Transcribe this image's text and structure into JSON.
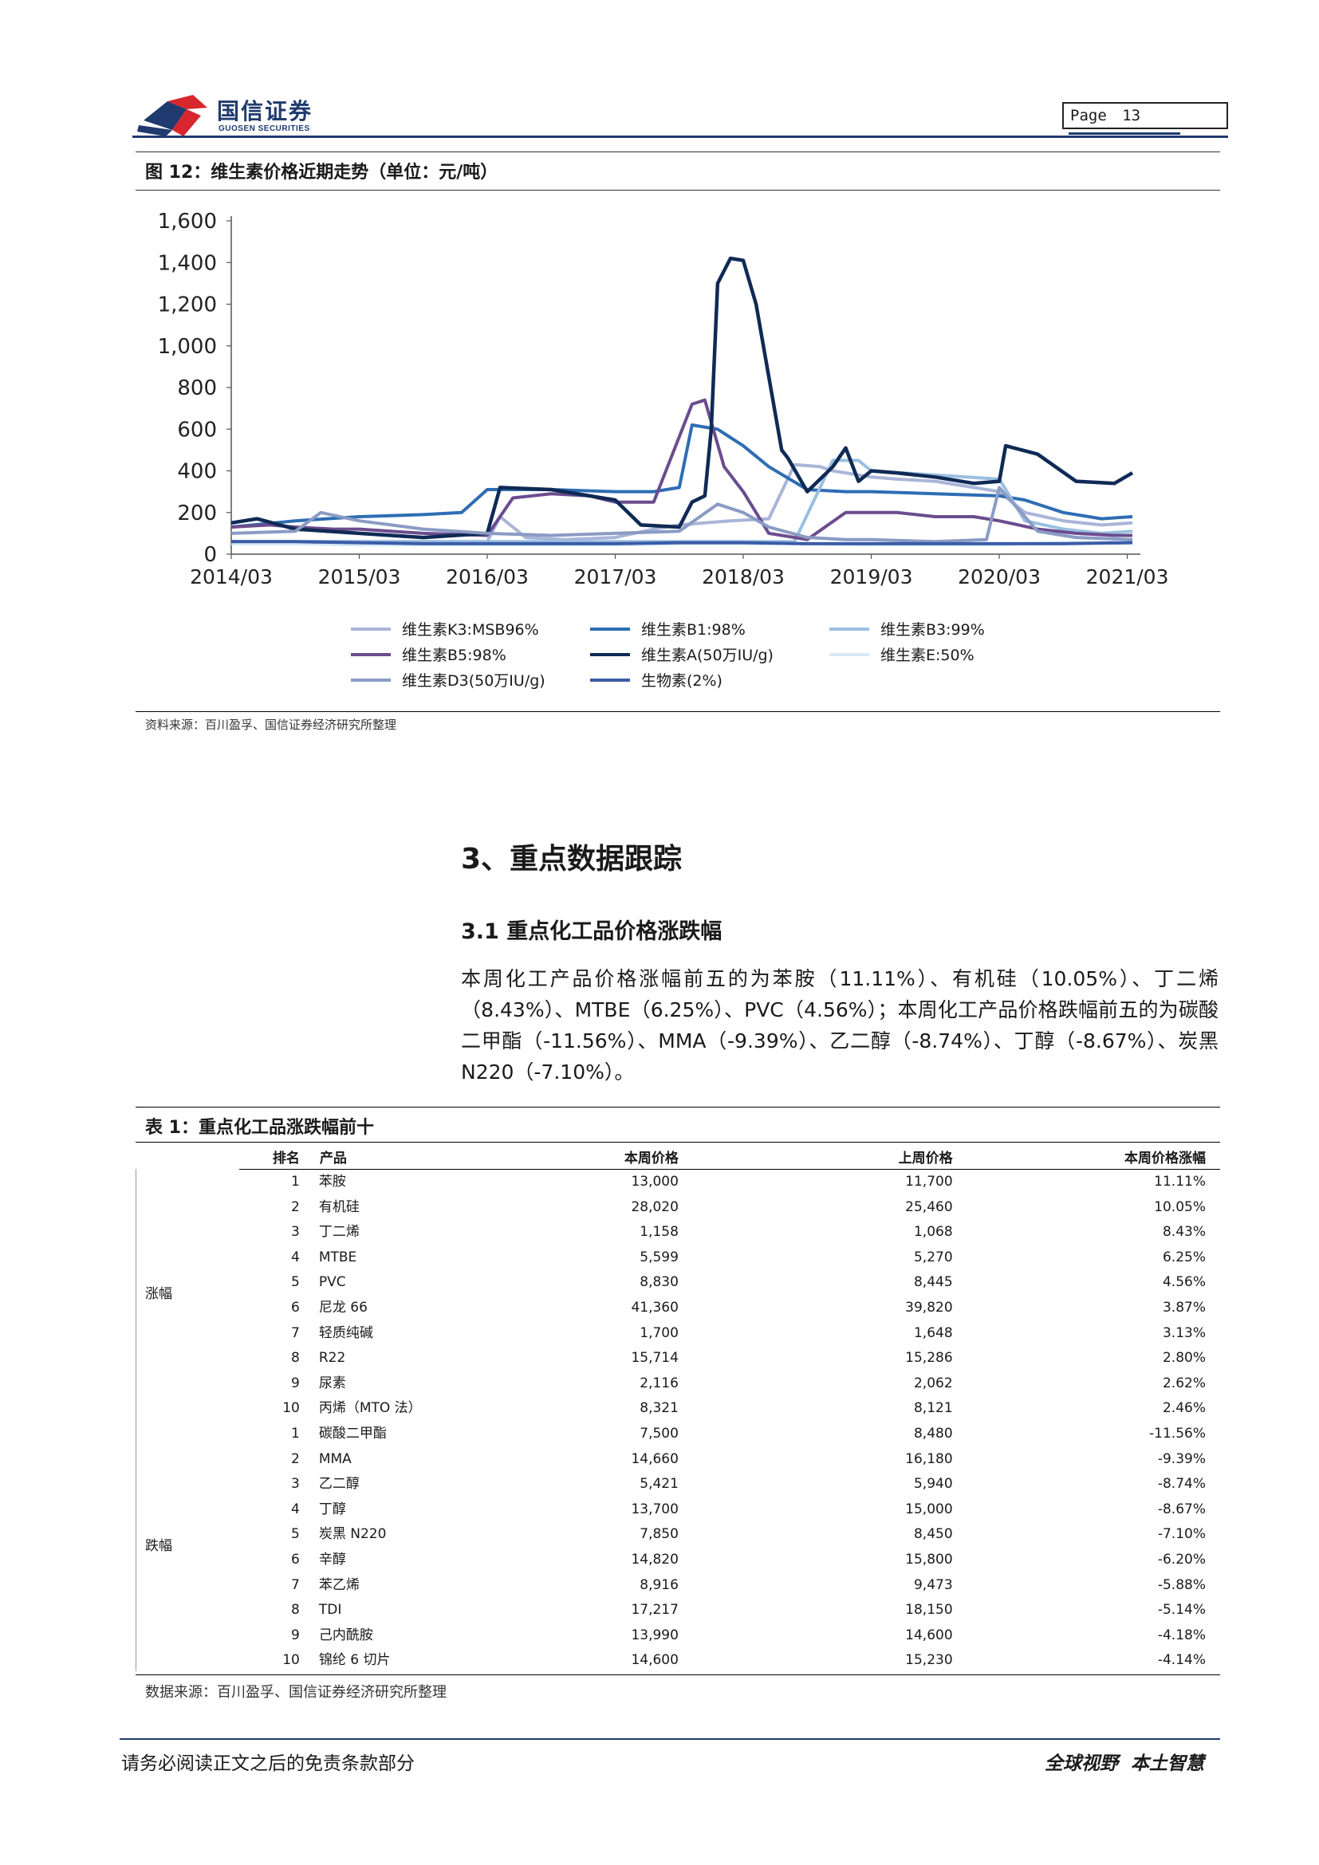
{
  "header": {
    "logo_cn": "国信证券",
    "logo_en": "GUOSEN SECURITIES",
    "page_label": "Page",
    "page_number": "13",
    "brand_color": "#1f3a6e"
  },
  "figure": {
    "title": "图 12：维生素价格近期走势（单位：元/吨）",
    "source": "资料来源：百川盈孚、国信证券经济研究所整理"
  },
  "chart_data": {
    "type": "line",
    "ylim": [
      0,
      1600
    ],
    "yticks": [
      "1,600",
      "1,400",
      "1,200",
      "1,000",
      "800",
      "600",
      "400",
      "200",
      "0"
    ],
    "ytick_values": [
      1600,
      1400,
      1200,
      1000,
      800,
      600,
      400,
      200,
      0
    ],
    "xticks": [
      "2014/03",
      "2015/03",
      "2016/03",
      "2017/03",
      "2018/03",
      "2019/03",
      "2020/03",
      "2021/03"
    ],
    "xlim": [
      2014.0,
      2021.04
    ],
    "legend_position": "bottom",
    "series": [
      {
        "name": "维生素K3:MSB96%",
        "color": "#a9b5d8",
        "x": [
          2014.0,
          2014.4,
          2014.7,
          2015.0,
          2015.5,
          2016.0,
          2016.1,
          2016.3,
          2016.6,
          2017.0,
          2017.3,
          2017.5,
          2017.7,
          2017.9,
          2018.2,
          2018.4,
          2018.6,
          2018.7,
          2018.8,
          2019.0,
          2019.2,
          2019.5,
          2019.8,
          2020.0,
          2020.2,
          2020.5,
          2020.8,
          2021.04
        ],
        "values": [
          60,
          60,
          60,
          60,
          60,
          60,
          180,
          80,
          70,
          80,
          120,
          140,
          150,
          160,
          170,
          430,
          420,
          400,
          390,
          370,
          360,
          350,
          320,
          300,
          200,
          160,
          140,
          150
        ]
      },
      {
        "name": "维生素B1:98%",
        "color": "#2e6db4",
        "x": [
          2014.0,
          2014.5,
          2015.0,
          2015.5,
          2015.8,
          2016.0,
          2016.5,
          2017.0,
          2017.3,
          2017.5,
          2017.6,
          2017.8,
          2018.0,
          2018.2,
          2018.5,
          2018.8,
          2019.0,
          2019.5,
          2020.0,
          2020.2,
          2020.5,
          2020.8,
          2021.04
        ],
        "values": [
          130,
          160,
          180,
          190,
          200,
          310,
          310,
          300,
          300,
          320,
          620,
          600,
          520,
          420,
          310,
          300,
          300,
          290,
          280,
          260,
          200,
          170,
          180
        ]
      },
      {
        "name": "维生素B3:99%",
        "color": "#9bbfe0",
        "x": [
          2014.0,
          2014.5,
          2015.0,
          2015.5,
          2016.0,
          2016.5,
          2017.0,
          2017.5,
          2017.9,
          2018.0,
          2018.2,
          2018.4,
          2018.7,
          2018.9,
          2019.0,
          2019.5,
          2020.0,
          2020.2,
          2020.5,
          2020.8,
          2021.04
        ],
        "values": [
          60,
          60,
          60,
          60,
          60,
          60,
          60,
          60,
          60,
          60,
          60,
          60,
          450,
          450,
          400,
          380,
          360,
          160,
          120,
          100,
          110
        ]
      },
      {
        "name": "维生素B5:98%",
        "color": "#6b4c8e",
        "x": [
          2014.0,
          2014.3,
          2014.5,
          2014.8,
          2015.0,
          2015.5,
          2016.0,
          2016.2,
          2016.5,
          2016.8,
          2017.0,
          2017.3,
          2017.6,
          2017.7,
          2017.85,
          2018.0,
          2018.2,
          2018.5,
          2018.8,
          2019.0,
          2019.2,
          2019.5,
          2019.8,
          2020.0,
          2020.3,
          2020.6,
          2020.9,
          2021.04
        ],
        "values": [
          130,
          140,
          130,
          120,
          120,
          100,
          90,
          270,
          290,
          280,
          250,
          250,
          720,
          740,
          420,
          300,
          100,
          70,
          200,
          200,
          200,
          180,
          180,
          160,
          120,
          100,
          90,
          90
        ]
      },
      {
        "name": "维生素A(50万IU/g)",
        "color": "#0f2a55",
        "x": [
          2014.0,
          2014.2,
          2014.5,
          2015.0,
          2015.5,
          2016.0,
          2016.1,
          2016.5,
          2016.8,
          2017.0,
          2017.2,
          2017.5,
          2017.6,
          2017.7,
          2017.75,
          2017.8,
          2017.9,
          2018.0,
          2018.1,
          2018.3,
          2018.35,
          2018.5,
          2018.7,
          2018.8,
          2018.9,
          2019.0,
          2019.2,
          2019.5,
          2019.8,
          2020.0,
          2020.05,
          2020.3,
          2020.6,
          2020.9,
          2021.04
        ],
        "values": [
          150,
          170,
          120,
          100,
          80,
          100,
          320,
          310,
          280,
          260,
          140,
          130,
          250,
          280,
          600,
          1300,
          1420,
          1410,
          1200,
          500,
          460,
          300,
          420,
          510,
          350,
          400,
          390,
          370,
          340,
          350,
          520,
          480,
          350,
          340,
          390
        ]
      },
      {
        "name": "维生素E:50%",
        "color": "#d6e9f5",
        "x": [
          2014.0,
          2014.5,
          2015.0,
          2015.5,
          2016.0,
          2016.5,
          2017.0,
          2017.5,
          2017.9,
          2018.0,
          2018.5,
          2019.0,
          2019.5,
          2020.0,
          2020.2,
          2020.5,
          2020.8,
          2021.04
        ],
        "values": [
          50,
          50,
          45,
          45,
          45,
          45,
          45,
          50,
          50,
          50,
          50,
          45,
          45,
          45,
          50,
          55,
          55,
          60
        ]
      },
      {
        "name": "维生素D3(50万IU/g)",
        "color": "#8a9bc4",
        "x": [
          2014.0,
          2014.5,
          2014.7,
          2015.0,
          2015.5,
          2016.0,
          2016.5,
          2017.0,
          2017.5,
          2017.8,
          2018.0,
          2018.2,
          2018.5,
          2018.8,
          2019.0,
          2019.5,
          2019.9,
          2020.0,
          2020.3,
          2020.6,
          2021.04
        ],
        "values": [
          100,
          110,
          200,
          160,
          120,
          100,
          90,
          100,
          110,
          240,
          200,
          130,
          80,
          70,
          70,
          60,
          70,
          320,
          110,
          80,
          70
        ]
      },
      {
        "name": "生物素(2%)",
        "color": "#3b5ca8",
        "x": [
          2014.0,
          2014.5,
          2015.0,
          2015.5,
          2016.0,
          2016.5,
          2017.0,
          2017.5,
          2017.8,
          2018.0,
          2018.5,
          2019.0,
          2019.5,
          2020.0,
          2020.5,
          2021.04
        ],
        "values": [
          60,
          60,
          55,
          50,
          50,
          50,
          50,
          55,
          55,
          55,
          50,
          50,
          50,
          50,
          50,
          55
        ]
      }
    ]
  },
  "section": {
    "title": "3、重点数据跟踪",
    "subtitle": "3.1 重点化工品价格涨跌幅",
    "paragraph": "本周化工产品价格涨幅前五的为苯胺（11.11%）、有机硅（10.05%）、丁二烯（8.43%）、MTBE（6.25%）、PVC（4.56%）；本周化工产品价格跌幅前五的为碳酸二甲酯（-11.56%）、MMA（-9.39%）、乙二醇（-8.74%）、丁醇（-8.67%）、炭黑 N220（-7.10%）。"
  },
  "table": {
    "title": "表 1：重点化工品涨跌幅前十",
    "headers": [
      "排名",
      "产品",
      "本周价格",
      "上周价格",
      "本周价格涨幅"
    ],
    "group_up": "涨幅",
    "group_down": "跌幅",
    "rows": [
      [
        "1",
        "苯胺",
        "13,000",
        "11,700",
        "11.11%"
      ],
      [
        "2",
        "有机硅",
        "28,020",
        "25,460",
        "10.05%"
      ],
      [
        "3",
        "丁二烯",
        "1,158",
        "1,068",
        "8.43%"
      ],
      [
        "4",
        "MTBE",
        "5,599",
        "5,270",
        "6.25%"
      ],
      [
        "5",
        "PVC",
        "8,830",
        "8,445",
        "4.56%"
      ],
      [
        "6",
        "尼龙 66",
        "41,360",
        "39,820",
        "3.87%"
      ],
      [
        "7",
        "轻质纯碱",
        "1,700",
        "1,648",
        "3.13%"
      ],
      [
        "8",
        "R22",
        "15,714",
        "15,286",
        "2.80%"
      ],
      [
        "9",
        "尿素",
        "2,116",
        "2,062",
        "2.62%"
      ],
      [
        "10",
        "丙烯（MTO 法）",
        "8,321",
        "8,121",
        "2.46%"
      ],
      [
        "1",
        "碳酸二甲酯",
        "7,500",
        "8,480",
        "-11.56%"
      ],
      [
        "2",
        "MMA",
        "14,660",
        "16,180",
        "-9.39%"
      ],
      [
        "3",
        "乙二醇",
        "5,421",
        "5,940",
        "-8.74%"
      ],
      [
        "4",
        "丁醇",
        "13,700",
        "15,000",
        "-8.67%"
      ],
      [
        "5",
        "炭黑 N220",
        "7,850",
        "8,450",
        "-7.10%"
      ],
      [
        "6",
        "辛醇",
        "14,820",
        "15,800",
        "-6.20%"
      ],
      [
        "7",
        "苯乙烯",
        "8,916",
        "9,473",
        "-5.88%"
      ],
      [
        "8",
        "TDI",
        "17,217",
        "18,150",
        "-5.14%"
      ],
      [
        "9",
        "己内酰胺",
        "13,990",
        "14,600",
        "-4.18%"
      ],
      [
        "10",
        "锦纶 6 切片",
        "14,600",
        "15,230",
        "-4.14%"
      ]
    ],
    "source": "数据来源：百川盈孚、国信证券经济研究所整理"
  },
  "footer": {
    "left": "请务必阅读正文之后的免责条款部分",
    "right": "全球视野  本土智慧"
  }
}
